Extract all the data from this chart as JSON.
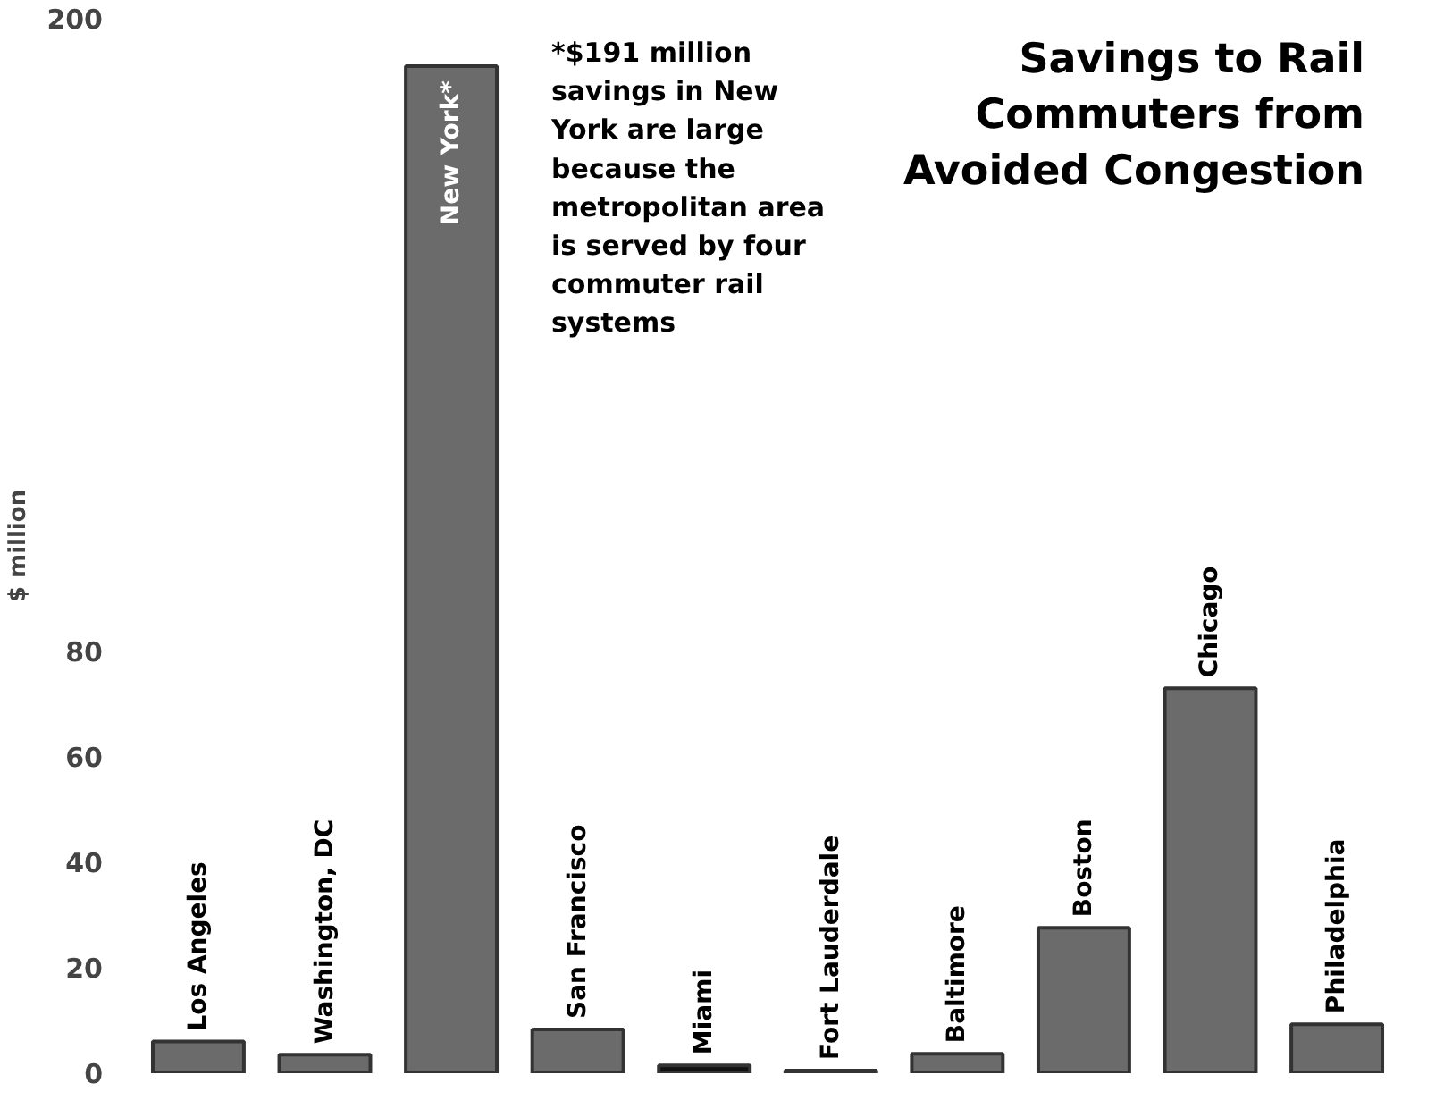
{
  "chart_data": {
    "type": "bar",
    "title": "Savings to Rail Commuters from Avoided Congestion",
    "ylabel": "$ million",
    "categories": [
      "Los Angeles",
      "Washington, DC",
      "New York*",
      "San Francisco",
      "Miami",
      "Fort Lauderdale",
      "Baltimore",
      "Boston",
      "Chicago",
      "Philadelphia"
    ],
    "values": [
      6,
      3.5,
      191,
      8.3,
      1.5,
      0.5,
      3.7,
      27.6,
      73,
      9.3
    ],
    "colors": [
      "#6b6b6b",
      "#6b6b6b",
      "#6b6b6b",
      "#6b6b6b",
      "#111111",
      "#111111",
      "#6b6b6b",
      "#6b6b6b",
      "#6b6b6b",
      "#6b6b6b"
    ],
    "ylim": [
      0,
      200
    ],
    "yticks": [
      0,
      20,
      40,
      60,
      80,
      200
    ],
    "grid": false,
    "tick_labels": "y",
    "annotations": [
      "*$191 million savings in New York are large because the metropolitan area is served by four commuter rail systems"
    ]
  }
}
